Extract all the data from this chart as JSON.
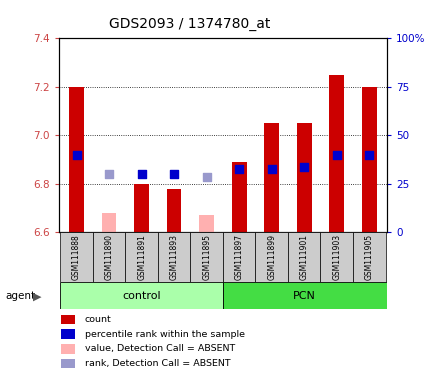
{
  "title": "GDS2093 / 1374780_at",
  "samples": [
    "GSM111888",
    "GSM111890",
    "GSM111891",
    "GSM111893",
    "GSM111895",
    "GSM111897",
    "GSM111899",
    "GSM111901",
    "GSM111903",
    "GSM111905"
  ],
  "ylim_left": [
    6.6,
    7.4
  ],
  "ylim_right": [
    0,
    100
  ],
  "yticks_left": [
    6.6,
    6.8,
    7.0,
    7.2,
    7.4
  ],
  "yticks_right": [
    0,
    25,
    50,
    75,
    100
  ],
  "red_bar_values": [
    7.2,
    null,
    6.8,
    6.78,
    null,
    6.89,
    7.05,
    7.05,
    7.25,
    7.2
  ],
  "pink_bar_values": [
    null,
    6.68,
    null,
    null,
    6.67,
    null,
    null,
    null,
    null,
    null
  ],
  "blue_square_values": [
    6.92,
    null,
    6.84,
    6.84,
    null,
    6.86,
    6.86,
    6.87,
    6.92,
    6.92
  ],
  "lightblue_square_values": [
    null,
    6.84,
    null,
    null,
    6.83,
    null,
    null,
    null,
    null,
    null
  ],
  "bar_bottom": 6.6,
  "red_color": "#CC0000",
  "pink_color": "#FFB0B0",
  "blue_color": "#0000CC",
  "lightblue_color": "#9999CC",
  "bar_width": 0.45,
  "square_size": 28,
  "left_tick_color": "#CC4444",
  "right_tick_color": "#0000CC",
  "control_color": "#AAFFAA",
  "pcn_color": "#44DD44",
  "gray_box_color": "#CCCCCC"
}
